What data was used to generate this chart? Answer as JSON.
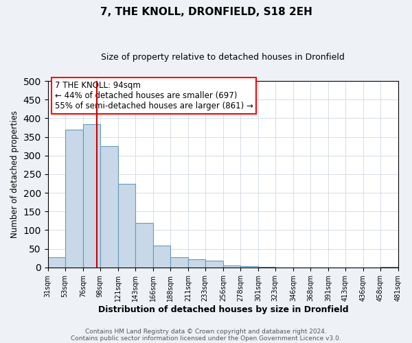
{
  "title": "7, THE KNOLL, DRONFIELD, S18 2EH",
  "subtitle": "Size of property relative to detached houses in Dronfield",
  "xlabel": "Distribution of detached houses by size in Dronfield",
  "ylabel": "Number of detached properties",
  "bar_left_edges": [
    31,
    53,
    76,
    98,
    121,
    143,
    166,
    188,
    211,
    233,
    256,
    278,
    301,
    323,
    346,
    368,
    391,
    413,
    436,
    458
  ],
  "bar_widths": [
    22,
    23,
    22,
    23,
    22,
    23,
    22,
    23,
    22,
    23,
    22,
    23,
    22,
    23,
    22,
    23,
    22,
    23,
    22,
    23
  ],
  "bar_heights": [
    27,
    370,
    385,
    325,
    225,
    120,
    58,
    27,
    22,
    18,
    5,
    3,
    2,
    0,
    0,
    0,
    0,
    0,
    0,
    2
  ],
  "bar_color": "#c8d8e8",
  "bar_edge_color": "#6699bb",
  "tick_labels": [
    "31sqm",
    "53sqm",
    "76sqm",
    "98sqm",
    "121sqm",
    "143sqm",
    "166sqm",
    "188sqm",
    "211sqm",
    "233sqm",
    "256sqm",
    "278sqm",
    "301sqm",
    "323sqm",
    "346sqm",
    "368sqm",
    "391sqm",
    "413sqm",
    "436sqm",
    "458sqm",
    "481sqm"
  ],
  "vline_x": 94,
  "vline_color": "#cc0000",
  "ylim": [
    0,
    500
  ],
  "yticks": [
    0,
    50,
    100,
    150,
    200,
    250,
    300,
    350,
    400,
    450,
    500
  ],
  "annotation_line1": "7 THE KNOLL: 94sqm",
  "annotation_line2": "← 44% of detached houses are smaller (697)",
  "annotation_line3": "55% of semi-detached houses are larger (861) →",
  "footer_line1": "Contains HM Land Registry data © Crown copyright and database right 2024.",
  "footer_line2": "Contains public sector information licensed under the Open Government Licence v3.0.",
  "bg_color": "#eef2f7",
  "plot_bg_color": "#ffffff",
  "grid_color": "#c8d0da"
}
